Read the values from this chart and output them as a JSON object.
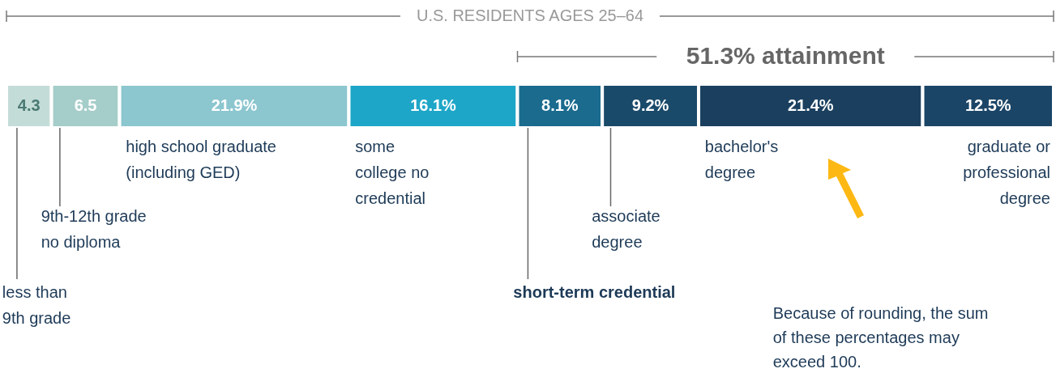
{
  "chart_data": {
    "type": "bar",
    "orientation": "horizontal",
    "stacked": true,
    "title": "U.S. RESIDENTS AGES 25–64",
    "categories": [
      null
    ],
    "series": [
      {
        "name": "less than 9th grade",
        "color": "#c4dcd7",
        "values": [
          4.3
        ],
        "value_labels": [
          "4.3"
        ]
      },
      {
        "name": "9th-12th grade no diploma",
        "color": "#a5cdc9",
        "values": [
          6.5
        ],
        "value_labels": [
          "6.5"
        ]
      },
      {
        "name": "high school graduate (including GED)",
        "color": "#8cc6cf",
        "values": [
          21.9
        ],
        "value_labels": [
          "21.9%"
        ]
      },
      {
        "name": "some college no credential",
        "color": "#1ea6c8",
        "values": [
          16.1
        ],
        "value_labels": [
          "16.1%"
        ]
      },
      {
        "name": "short-term credential",
        "color": "#1a6b8e",
        "values": [
          8.1
        ],
        "value_labels": [
          "8.1%"
        ]
      },
      {
        "name": "associate degree",
        "color": "#1a4a6a",
        "values": [
          9.2
        ],
        "value_labels": [
          "9.2%"
        ]
      },
      {
        "name": "bachelor's degree",
        "color": "#1b405f",
        "values": [
          21.4
        ],
        "value_labels": [
          "21.4%"
        ]
      },
      {
        "name": "graduate or professional degree",
        "color": "#1b4566",
        "values": [
          12.5
        ],
        "value_labels": [
          "12.5%"
        ]
      }
    ],
    "annotations": [
      "51.3% attainment",
      "Because of rounding, the sum of these percentages may exceed 100."
    ]
  }
}
